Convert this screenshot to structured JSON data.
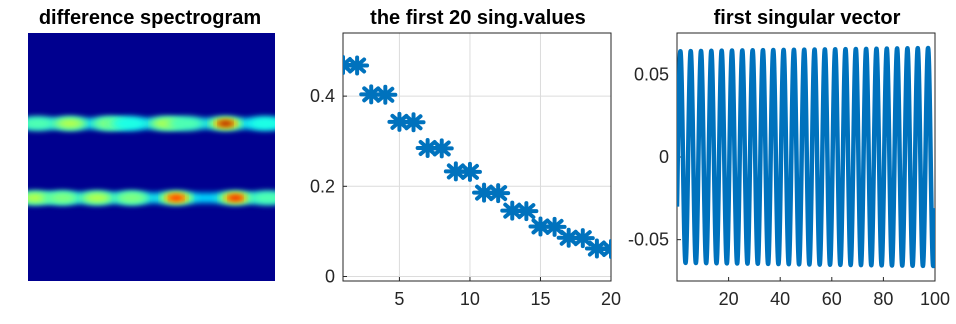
{
  "chart_data": [
    {
      "type": "heatmap",
      "title": "difference spectrogram",
      "colormap": "jet",
      "background": "#00008f",
      "bands": [
        {
          "row_fraction": 0.365,
          "hot_spots": [
            {
              "x": 0.04,
              "level": 0.45
            },
            {
              "x": 0.17,
              "level": 0.55
            },
            {
              "x": 0.33,
              "level": 0.5
            },
            {
              "x": 0.41,
              "level": 0.4
            },
            {
              "x": 0.56,
              "level": 0.55
            },
            {
              "x": 0.64,
              "level": 0.45
            },
            {
              "x": 0.8,
              "level": 1.0
            },
            {
              "x": 0.96,
              "level": 0.4
            }
          ]
        },
        {
          "row_fraction": 0.665,
          "hot_spots": [
            {
              "x": 0.03,
              "level": 0.55
            },
            {
              "x": 0.14,
              "level": 0.5
            },
            {
              "x": 0.28,
              "level": 0.55
            },
            {
              "x": 0.42,
              "level": 0.5
            },
            {
              "x": 0.6,
              "level": 0.85
            },
            {
              "x": 0.84,
              "level": 0.9
            },
            {
              "x": 0.97,
              "level": 0.45
            }
          ]
        }
      ]
    },
    {
      "type": "scatter",
      "title": "the first 20 sing.values",
      "marker": "*",
      "color": "#0072bd",
      "xlim": [
        1,
        20
      ],
      "ylim": [
        -0.01,
        0.54
      ],
      "xticks": [
        "5",
        "10",
        "15",
        "20"
      ],
      "yticks": [
        "0",
        "0.2",
        "0.4"
      ],
      "grid": true,
      "x": [
        1,
        2,
        3,
        4,
        5,
        6,
        7,
        8,
        9,
        10,
        11,
        12,
        13,
        14,
        15,
        16,
        17,
        18,
        19,
        20
      ],
      "y": [
        0.469,
        0.468,
        0.404,
        0.403,
        0.343,
        0.342,
        0.285,
        0.284,
        0.233,
        0.232,
        0.186,
        0.185,
        0.146,
        0.145,
        0.111,
        0.11,
        0.086,
        0.085,
        0.062,
        0.061
      ]
    },
    {
      "type": "line",
      "title": "first singular vector",
      "color": "#0072bd",
      "xlim": [
        0,
        100
      ],
      "ylim": [
        -0.075,
        0.075
      ],
      "xticks": [
        "20",
        "40",
        "60",
        "80",
        "100"
      ],
      "yticks": [
        "0.05",
        "0",
        "-0.05"
      ],
      "grid": false,
      "cycles": 25,
      "amplitude": [
        0.064,
        0.066
      ],
      "start_value": -0.03,
      "end_value": -0.045
    }
  ]
}
